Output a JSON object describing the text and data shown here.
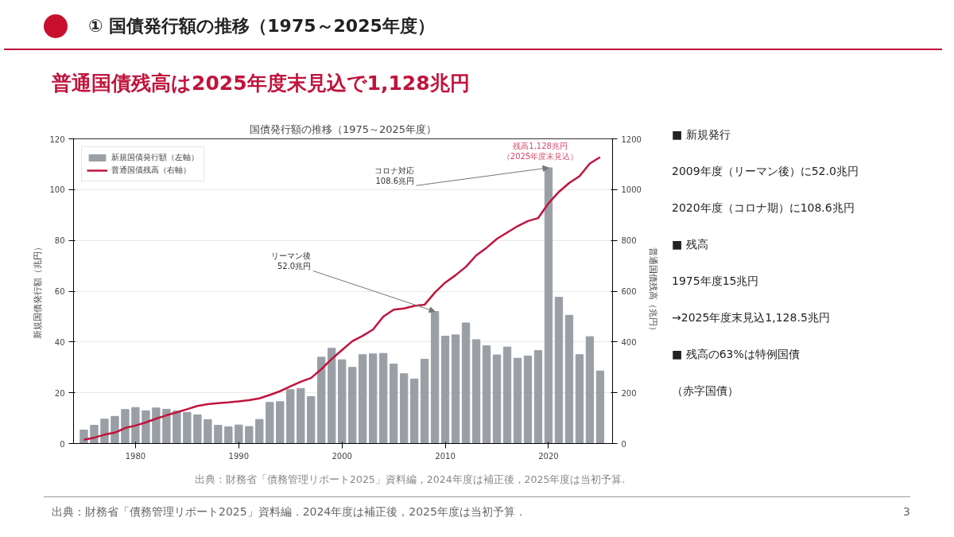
{
  "chart_data": {
    "type": "bar",
    "title": "国債発行額の推移（1975～2025年度）",
    "subtitle": "普通国債残高は2025年度末見込で1,128兆円",
    "xlabel": null,
    "ylabel": "新規国債発行額（兆円）",
    "y2label": "普通国債残高（兆円）",
    "x": [
      1975,
      1976,
      1977,
      1978,
      1979,
      1980,
      1981,
      1982,
      1983,
      1984,
      1985,
      1986,
      1987,
      1988,
      1989,
      1990,
      1991,
      1992,
      1993,
      1994,
      1995,
      1996,
      1997,
      1998,
      1999,
      2000,
      2001,
      2002,
      2003,
      2004,
      2005,
      2006,
      2007,
      2008,
      2009,
      2010,
      2011,
      2012,
      2013,
      2014,
      2015,
      2016,
      2017,
      2018,
      2019,
      2020,
      2021,
      2022,
      2023,
      2024,
      2025
    ],
    "series": [
      {
        "name": "新規国債発行額（左軸）",
        "color": "#9a9fa6",
        "values": [
          5.3,
          7.2,
          9.6,
          10.7,
          13.4,
          14.2,
          12.9,
          14.0,
          13.5,
          12.8,
          12.3,
          11.3,
          9.4,
          7.2,
          6.6,
          7.3,
          6.7,
          9.5,
          16.2,
          16.5,
          21.2,
          21.7,
          18.5,
          34.0,
          37.5,
          33.0,
          30.0,
          35.0,
          35.3,
          35.5,
          31.3,
          27.5,
          25.4,
          33.2,
          52.0,
          42.3,
          42.8,
          47.5,
          40.9,
          38.5,
          34.9,
          38.0,
          33.6,
          34.5,
          36.6,
          108.6,
          57.6,
          50.5,
          35.0,
          42.1,
          28.6
        ]
      },
      {
        "name": "普通国債残高（右軸）",
        "type": "line",
        "axis": "y2",
        "color": "#c0143c",
        "values": [
          15,
          23,
          35,
          43,
          61,
          71,
          83,
          98,
          111,
          123,
          135,
          148,
          155,
          159,
          162,
          166,
          171,
          178,
          191,
          206,
          225,
          243,
          258,
          293,
          333,
          368,
          403,
          424,
          449,
          500,
          527,
          532,
          542,
          547,
          595,
          634,
          663,
          696,
          741,
          771,
          806,
          831,
          856,
          876,
          888,
          946,
          991,
          1026,
          1053,
          1103,
          1128
        ]
      }
    ],
    "xlim": [
      1974,
      2026.2
    ],
    "xticks": [
      1980,
      1990,
      2000,
      2010,
      2020
    ],
    "ylim": [
      0,
      120
    ],
    "yticks": [
      0,
      20,
      40,
      60,
      80,
      100,
      120
    ],
    "y2lim": [
      0,
      1200
    ],
    "y2ticks": [
      0,
      200,
      400,
      600,
      800,
      1000,
      1200
    ],
    "grid": "y",
    "legend": "top left",
    "annotations": [
      {
        "text": "リーマン後\n52.0兆円",
        "x": 2009,
        "y": 52.0
      },
      {
        "text": "コロナ対応\n108.6兆円",
        "x": 2020,
        "y": 108.6
      },
      "① 国債発行額の推移（1975～2025年度）",
      "残高1,128兆円",
      "（2025年度末見込）",
      "■ 新規発行",
      "2009年度（リーマン後）に52.0兆円",
      "2020年度（コロナ期）に108.6兆円",
      "■ 残高",
      "1975年度15兆円",
      "→2025年度末見込1,128.5兆円",
      "■ 残高の63%は特例国債",
      "（赤字国債）",
      "出典：財務省「債務管理リポート2025」資料編，2024年度は補正後，2025年度は当初予算.",
      "出典：財務省「債務管理リポート2025」資料編．2024年度は補正後，2025年度は当初予算．",
      "3"
    ]
  }
}
